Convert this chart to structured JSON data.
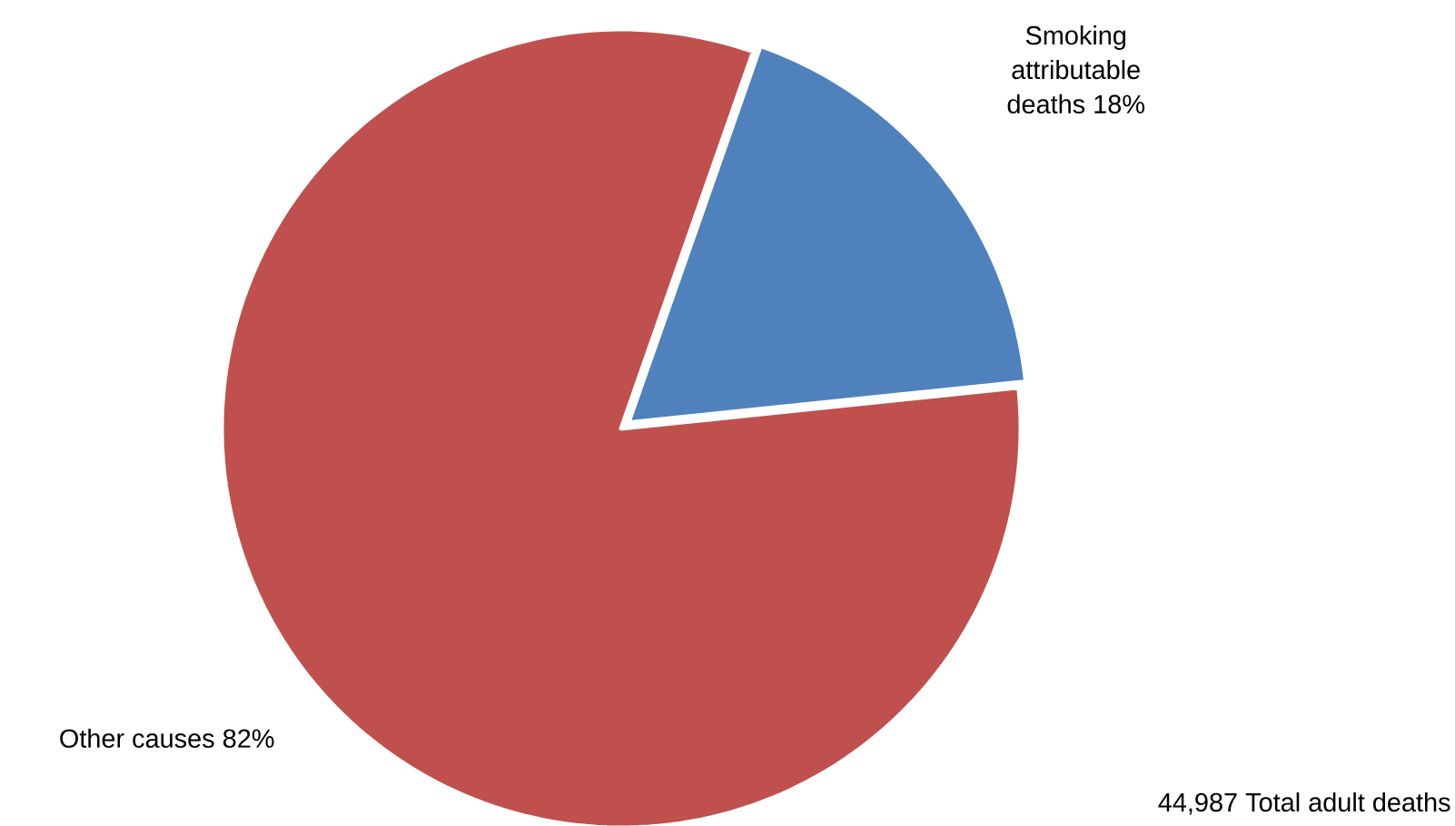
{
  "chart_data": {
    "type": "pie",
    "categories": [
      "Smoking attributable deaths",
      "Other causes"
    ],
    "values": [
      18,
      82
    ],
    "colors": [
      "#4f81bd",
      "#c0504d"
    ],
    "value_labels": [
      "18%",
      "82%"
    ],
    "annotations": [
      "44,987 Total adult deaths"
    ]
  }
}
